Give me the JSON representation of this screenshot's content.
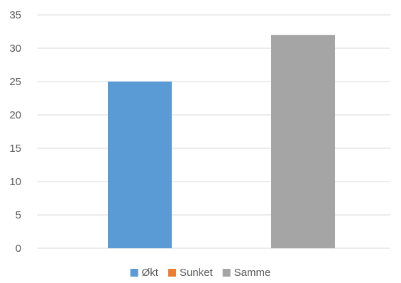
{
  "chart_data": {
    "type": "bar",
    "categories": [
      "Økt",
      "Sunket",
      "Samme"
    ],
    "values": [
      25,
      0,
      32
    ],
    "colors": [
      "#5b9bd5",
      "#ed7d31",
      "#a5a5a5"
    ],
    "title": "",
    "xlabel": "",
    "ylabel": "",
    "ylim": [
      0,
      35
    ],
    "yticks": [
      "0",
      "5",
      "10",
      "15",
      "20",
      "25",
      "30",
      "35"
    ],
    "grid": true,
    "legend_position": "bottom",
    "legend": [
      {
        "label": "Økt",
        "color": "#5b9bd5"
      },
      {
        "label": "Sunket",
        "color": "#ed7d31"
      },
      {
        "label": "Samme",
        "color": "#a5a5a5"
      }
    ]
  }
}
